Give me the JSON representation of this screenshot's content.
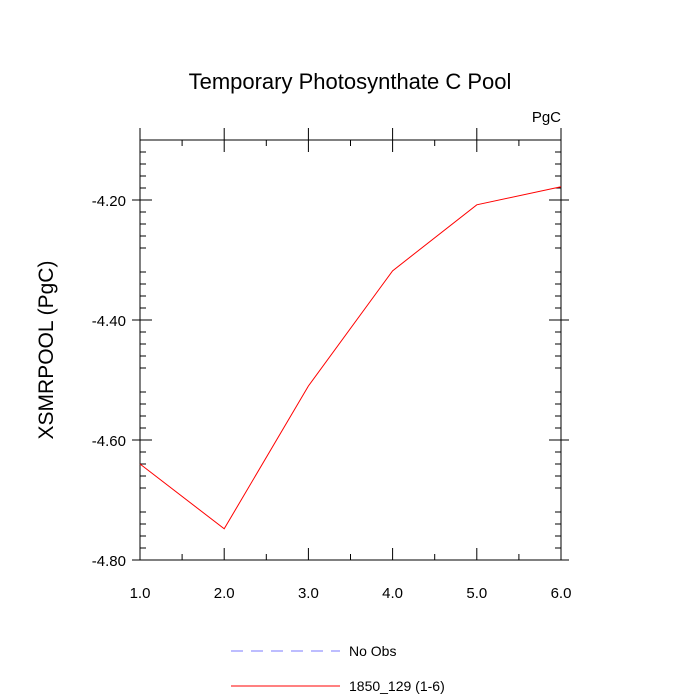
{
  "chart_data": {
    "type": "line",
    "title": "Temporary Photosynthate C Pool",
    "units_label": "PgC",
    "xlabel": "",
    "ylabel": "XSMRPOOL  (PgC)",
    "xlim": [
      1.0,
      6.0
    ],
    "ylim": [
      -4.8,
      -4.1
    ],
    "x_ticks": [
      1.0,
      2.0,
      3.0,
      4.0,
      5.0,
      6.0
    ],
    "x_tick_labels": [
      "1.0",
      "2.0",
      "3.0",
      "4.0",
      "5.0",
      "6.0"
    ],
    "y_ticks": [
      -4.2,
      -4.4,
      -4.6,
      -4.8
    ],
    "y_tick_labels": [
      "-4.20",
      "-4.40",
      "-4.60",
      "-4.80"
    ],
    "grid": false,
    "legend_position": "bottom",
    "series": [
      {
        "name": "1850_129 (1-6)",
        "color": "#ff0000",
        "dash": "solid",
        "x": [
          1.0,
          2.0,
          3.0,
          4.0,
          5.0,
          6.0
        ],
        "values": [
          -4.64,
          -4.748,
          -4.51,
          -4.318,
          -4.208,
          -4.178
        ]
      }
    ],
    "legend": [
      {
        "label": "No Obs",
        "color": "#7b7bff",
        "dash": "dashed"
      },
      {
        "label": "1850_129 (1-6)",
        "color": "#ff0000",
        "dash": "solid"
      }
    ]
  }
}
